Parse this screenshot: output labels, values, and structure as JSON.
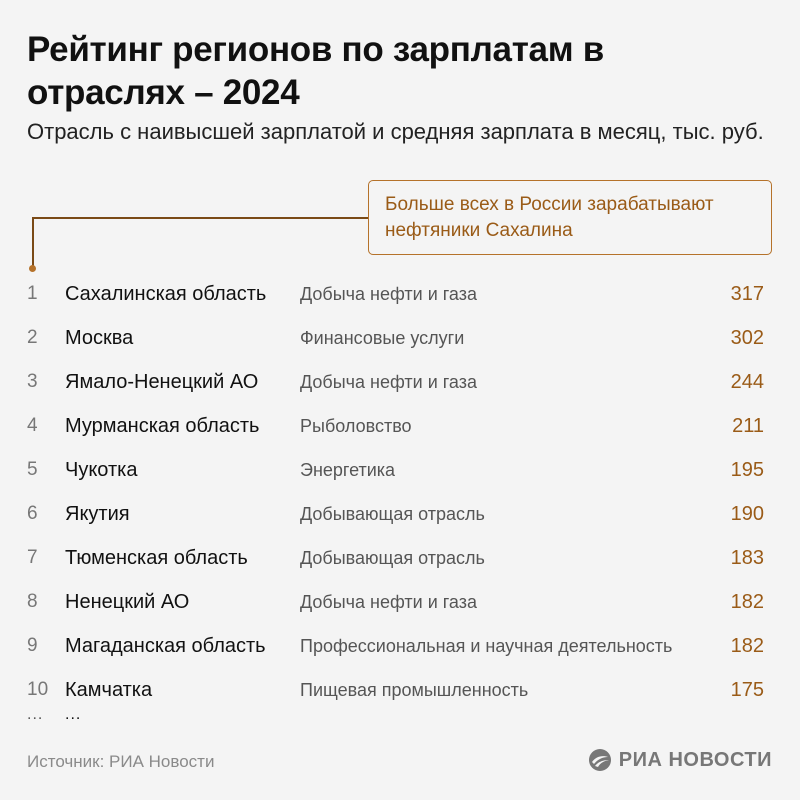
{
  "title": "Рейтинг регионов по зарплатам в отраслях – 2024",
  "subtitle": "Отрасль с наивысшей зарплатой и средняя зарплата в месяц, тыс. руб.",
  "callout": "Больше всех в России зарабатывают нефтяники Сахалина",
  "source": "Источник: РИА Новости",
  "logo_text": "РИА НОВОСТИ",
  "ellipsis": "...",
  "colors": {
    "accent": "#9a5b17",
    "background": "#f4f4f4",
    "text": "#111111",
    "muted": "#555555"
  },
  "chart_data": {
    "type": "table",
    "columns": [
      "",
      "",
      "",
      ""
    ],
    "rows": [
      {
        "rank": "1",
        "region": "Сахалинская область",
        "industry": "Добыча нефти и газа",
        "value": "317"
      },
      {
        "rank": "2",
        "region": "Москва",
        "industry": "Финансовые услуги",
        "value": "302"
      },
      {
        "rank": "3",
        "region": "Ямало-Ненецкий АО",
        "industry": "Добыча нефти и газа",
        "value": "244"
      },
      {
        "rank": "4",
        "region": "Мурманская область",
        "industry": "Рыболовство",
        "value": "211"
      },
      {
        "rank": "5",
        "region": "Чукотка",
        "industry": "Энергетика",
        "value": "195"
      },
      {
        "rank": "6",
        "region": "Якутия",
        "industry": "Добывающая отрасль",
        "value": "190"
      },
      {
        "rank": "7",
        "region": "Тюменская область",
        "industry": "Добывающая отрасль",
        "value": "183"
      },
      {
        "rank": "8",
        "region": "Ненецкий АО",
        "industry": "Добыча нефти и газа",
        "value": "182"
      },
      {
        "rank": "9",
        "region": "Магаданская область",
        "industry": "Профессиональная и научная деятельность",
        "value": "182"
      },
      {
        "rank": "10",
        "region": "Камчатка",
        "industry": "Пищевая промышленность",
        "value": "175"
      }
    ]
  }
}
